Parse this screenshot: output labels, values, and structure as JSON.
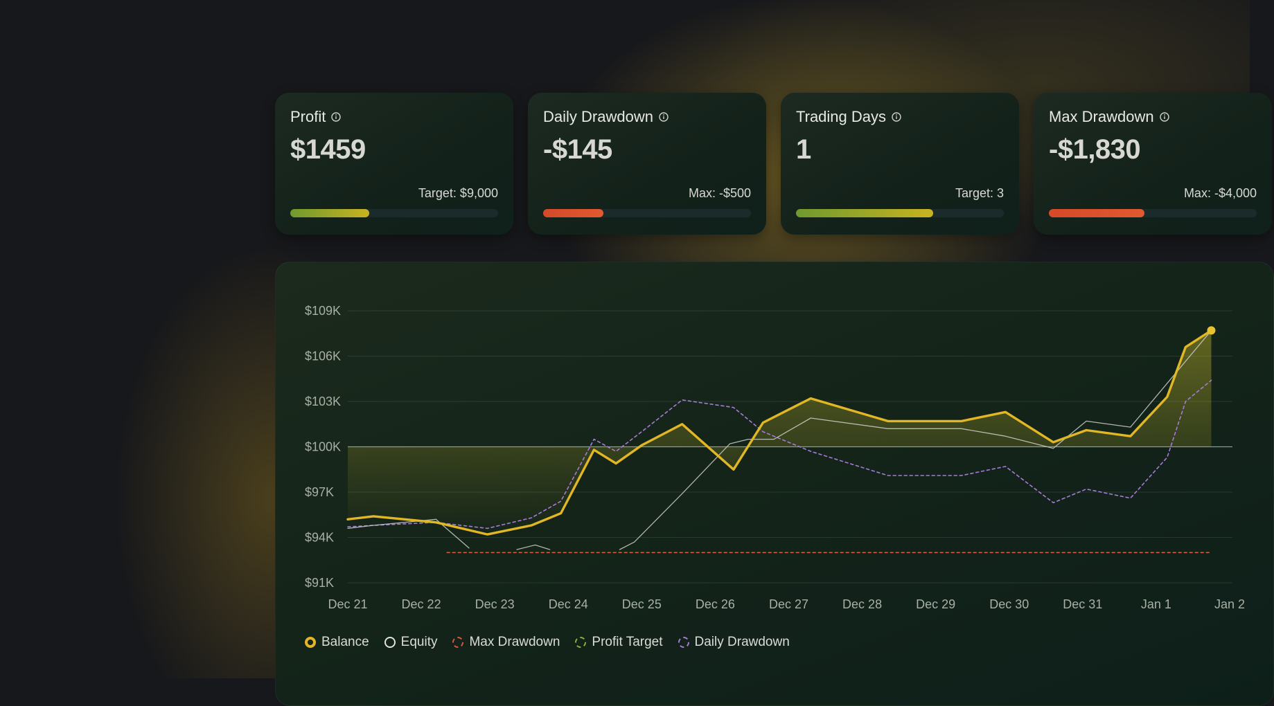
{
  "cards": [
    {
      "title": "Profit",
      "value": "$1459",
      "meta": "Target: $9,000",
      "progress": 0.38,
      "bar_from": "#6f9a2e",
      "bar_to": "#c8b321"
    },
    {
      "title": "Daily Drawdown",
      "value": "-$145",
      "meta": "Max: -$500",
      "progress": 0.29,
      "bar_from": "#d44a2a",
      "bar_to": "#e05a30"
    },
    {
      "title": "Trading Days",
      "value": "1",
      "meta": "Target: 3",
      "progress": 0.66,
      "bar_from": "#6f9a2e",
      "bar_to": "#c8b321"
    },
    {
      "title": "Max Drawdown",
      "value": "-$1,830",
      "meta": "Max: -$4,000",
      "progress": 0.46,
      "bar_from": "#d44a2a",
      "bar_to": "#e05a30"
    }
  ],
  "chart_data": {
    "type": "line",
    "x": [
      "Dec 21",
      "Dec 22",
      "Dec 23",
      "Dec 24",
      "Dec 25",
      "Dec 26",
      "Dec 27",
      "Dec 28",
      "Dec 29",
      "Dec 30",
      "Dec 31",
      "Jan 1",
      "Jan 2"
    ],
    "y_ticks": [
      "$109K",
      "$106K",
      "$103K",
      "$100K",
      "$97K",
      "$94K",
      "$91K"
    ],
    "ylim": [
      91000,
      109000
    ],
    "baseline": 100000,
    "series": [
      {
        "name": "Balance",
        "color": "#e2b726",
        "style": "solid",
        "points": [
          [
            0,
            95200
          ],
          [
            0.35,
            95400
          ],
          [
            1.2,
            95000
          ],
          [
            1.9,
            94200
          ],
          [
            2.5,
            94800
          ],
          [
            2.9,
            95600
          ],
          [
            3.35,
            99800
          ],
          [
            3.65,
            98900
          ],
          [
            4.0,
            100100
          ],
          [
            4.55,
            101500
          ],
          [
            5.25,
            98500
          ],
          [
            5.65,
            101600
          ],
          [
            6.3,
            103200
          ],
          [
            7.35,
            101700
          ],
          [
            8.35,
            101700
          ],
          [
            8.95,
            102300
          ],
          [
            9.6,
            100300
          ],
          [
            10.05,
            101100
          ],
          [
            10.65,
            100700
          ],
          [
            11.15,
            103300
          ],
          [
            11.4,
            106600
          ],
          [
            11.75,
            107700
          ]
        ]
      },
      {
        "name": "Equity",
        "color": "#cfcfc8",
        "style": "solid",
        "points": [
          [
            0,
            94600
          ],
          [
            0.35,
            94800
          ],
          [
            1.2,
            95200
          ],
          [
            1.65,
            93300
          ],
          [
            null,
            null
          ],
          [
            2.3,
            93200
          ],
          [
            2.55,
            93500
          ],
          [
            2.75,
            93200
          ],
          [
            null,
            null
          ],
          [
            3.7,
            93200
          ],
          [
            3.9,
            93700
          ],
          [
            4.55,
            96900
          ],
          [
            5.2,
            100200
          ],
          [
            5.45,
            100500
          ],
          [
            5.8,
            100500
          ],
          [
            6.3,
            101900
          ],
          [
            7.35,
            101200
          ],
          [
            8.35,
            101200
          ],
          [
            8.95,
            100700
          ],
          [
            9.6,
            99900
          ],
          [
            10.05,
            101700
          ],
          [
            10.65,
            101300
          ],
          [
            11.15,
            104200
          ],
          [
            11.75,
            107700
          ]
        ]
      },
      {
        "name": "Max Drawdown",
        "color": "#d65a3a",
        "style": "dashed",
        "points": [
          [
            1.35,
            93000
          ],
          [
            11.75,
            93000
          ]
        ]
      },
      {
        "name": "Profit Target",
        "color": "#8fae3a",
        "style": "dashed",
        "points": []
      },
      {
        "name": "Daily Drawdown",
        "color": "#a77cd9",
        "style": "dashed",
        "points": [
          [
            0,
            94700
          ],
          [
            0.35,
            94800
          ],
          [
            1.2,
            95000
          ],
          [
            1.9,
            94600
          ],
          [
            2.5,
            95300
          ],
          [
            2.9,
            96400
          ],
          [
            3.35,
            100500
          ],
          [
            3.65,
            99700
          ],
          [
            4.0,
            101000
          ],
          [
            4.55,
            103100
          ],
          [
            5.25,
            102600
          ],
          [
            5.65,
            101000
          ],
          [
            6.3,
            99700
          ],
          [
            7.35,
            98100
          ],
          [
            8.35,
            98100
          ],
          [
            8.95,
            98700
          ],
          [
            9.6,
            96300
          ],
          [
            10.05,
            97200
          ],
          [
            10.65,
            96600
          ],
          [
            11.15,
            99300
          ],
          [
            11.4,
            103000
          ],
          [
            11.75,
            104400
          ]
        ]
      }
    ],
    "legend": [
      "Balance",
      "Equity",
      "Max Drawdown",
      "Profit Target",
      "Daily Drawdown"
    ],
    "legend_placement": "bottom-left",
    "grid": true
  }
}
